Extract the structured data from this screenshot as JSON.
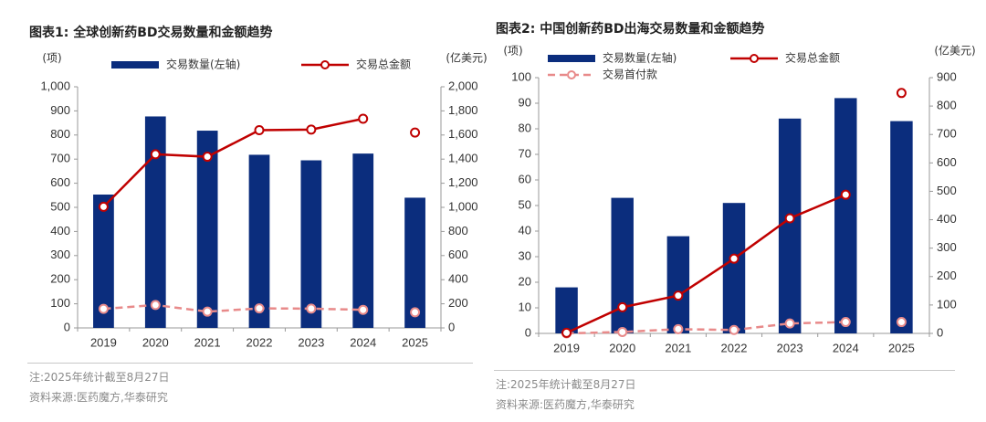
{
  "colors": {
    "bar": "#0b2d7d",
    "total_line": "#c00000",
    "upfront_line": "#e88a8a",
    "axis": "#999999",
    "title": "#222222",
    "note": "#8a8a8a"
  },
  "chart_data": [
    {
      "type": "bar",
      "title": "图表1:  全球创新药BD交易数量和金额趋势",
      "categories": [
        "2019",
        "2020",
        "2021",
        "2022",
        "2023",
        "2024",
        "2025"
      ],
      "left_unit": "(项)",
      "right_unit": "(亿美元)",
      "ylim": [
        0,
        1000
      ],
      "y2lim": [
        0,
        2000
      ],
      "left_ticks": [
        0,
        100,
        200,
        300,
        400,
        500,
        600,
        700,
        800,
        900,
        1000
      ],
      "right_ticks": [
        0,
        200,
        400,
        600,
        800,
        1000,
        1200,
        1400,
        1600,
        1800,
        2000
      ],
      "tick_labels_left": [
        "0",
        "100",
        "200",
        "300",
        "400",
        "500",
        "600",
        "700",
        "800",
        "900",
        "1,000"
      ],
      "tick_labels_right": [
        "0",
        "200",
        "400",
        "600",
        "800",
        "1,000",
        "1,200",
        "1,400",
        "1,600",
        "1,800",
        "2,000"
      ],
      "legend": [
        "交易数量(左轴)",
        "交易总金额"
      ],
      "series": [
        {
          "name": "交易数量(左轴)",
          "kind": "bar",
          "axis": "left",
          "values": [
            553,
            877,
            818,
            718,
            695,
            723,
            540
          ]
        },
        {
          "name": "交易总金额",
          "kind": "line",
          "axis": "right",
          "connect_last": false,
          "values": [
            1005,
            1440,
            1420,
            1640,
            1645,
            1735,
            1620
          ]
        },
        {
          "name": "交易首付款",
          "kind": "dashed",
          "axis": "right",
          "in_legend": false,
          "connect_last": false,
          "values": [
            158,
            190,
            135,
            162,
            160,
            150,
            130
          ]
        }
      ]
    },
    {
      "type": "bar",
      "title": "图表2:  中国创新药BD出海交易数量和金额趋势",
      "categories": [
        "2019",
        "2020",
        "2021",
        "2022",
        "2023",
        "2024",
        "2025"
      ],
      "left_unit": "(项)",
      "right_unit": "(亿美元)",
      "ylim": [
        0,
        100
      ],
      "y2lim": [
        0,
        900
      ],
      "left_ticks": [
        0,
        10,
        20,
        30,
        40,
        50,
        60,
        70,
        80,
        90,
        100
      ],
      "right_ticks": [
        0,
        100,
        200,
        300,
        400,
        500,
        600,
        700,
        800,
        900
      ],
      "tick_labels_left": [
        "0",
        "10",
        "20",
        "30",
        "40",
        "50",
        "60",
        "70",
        "80",
        "90",
        "100"
      ],
      "tick_labels_right": [
        "0",
        "100",
        "200",
        "300",
        "400",
        "500",
        "600",
        "700",
        "800",
        "900"
      ],
      "legend": [
        "交易数量(左轴)",
        "交易总金额",
        "交易首付款"
      ],
      "series": [
        {
          "name": "交易数量(左轴)",
          "kind": "bar",
          "axis": "left",
          "values": [
            18,
            53,
            38,
            51,
            84,
            92,
            83
          ]
        },
        {
          "name": "交易总金额",
          "kind": "line",
          "axis": "right",
          "connect_last": false,
          "values": [
            2,
            92,
            133,
            263,
            405,
            488,
            846
          ]
        },
        {
          "name": "交易首付款",
          "kind": "dashed",
          "axis": "right",
          "connect_last": false,
          "values": [
            0,
            5,
            15,
            12,
            35,
            40,
            40
          ]
        }
      ]
    }
  ],
  "notes": {
    "left": [
      "注:2025年统计截至8月27日",
      "资料来源:医药魔方,华泰研究"
    ],
    "right": [
      "注:2025年统计截至8月27日",
      "资料来源:医药魔方,华泰研究"
    ]
  }
}
